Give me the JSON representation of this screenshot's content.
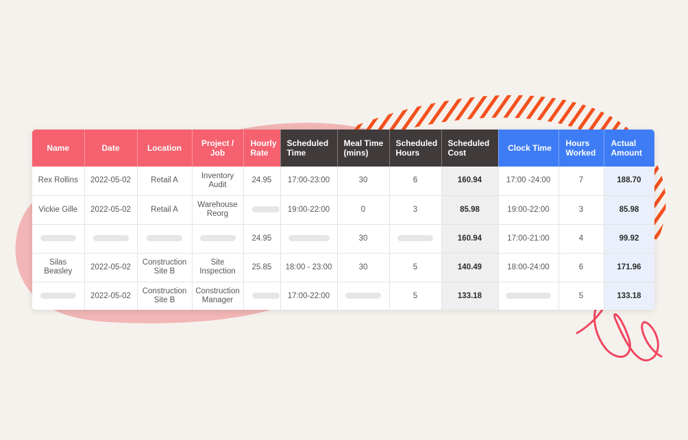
{
  "headers": {
    "name": "Name",
    "date": "Date",
    "location": "Location",
    "project": "Project / Job",
    "hourly": "Hourly Rate",
    "sched_time": "Scheduled Time",
    "meal": "Meal Time (mins)",
    "sched_hours": "Scheduled Hours",
    "sched_cost": "Scheduled Cost",
    "clock": "Clock Time",
    "worked": "Hours Worked",
    "actual": "Actual Amount"
  },
  "rows": [
    {
      "name": "Rex Rollins",
      "date": "2022-05-02",
      "location": "Retail A",
      "project": "Inventory Audit",
      "hourly": "24.95",
      "sched_time": "17:00-23:00",
      "meal": "30",
      "sched_hours": "6",
      "sched_cost": "160.94",
      "clock": "17:00 -24:00",
      "worked": "7",
      "actual": "188.70"
    },
    {
      "name": "Vickie Gille",
      "date": "2022-05-02",
      "location": "Retail A",
      "project": "Warehouse Reorg",
      "hourly": "",
      "sched_time": "19:00-22:00",
      "meal": "0",
      "sched_hours": "3",
      "sched_cost": "85.98",
      "clock": "19:00-22:00",
      "worked": "3",
      "actual": "85.98"
    },
    {
      "name": "",
      "date": "",
      "location": "",
      "project": "",
      "hourly": "24.95",
      "sched_time": "",
      "meal": "30",
      "sched_hours": "",
      "sched_cost": "160.94",
      "clock": "17:00-21:00",
      "worked": "4",
      "actual": "99.92"
    },
    {
      "name": "Silas Beasley",
      "date": "2022-05-02",
      "location": "Construction Site B",
      "project": "Site Inspection",
      "hourly": "25.85",
      "sched_time": "18:00 - 23:00",
      "meal": "30",
      "sched_hours": "5",
      "sched_cost": "140.49",
      "clock": "18:00-24:00",
      "worked": "6",
      "actual": "171.96"
    },
    {
      "name": "",
      "date": "2022-05-02",
      "location": "Construction Site B",
      "project": "Construction Manager",
      "hourly": "",
      "sched_time": "17:00-22:00",
      "meal": "",
      "sched_hours": "5",
      "sched_cost": "133.18",
      "clock": "",
      "worked": "5",
      "actual": "133.18"
    }
  ],
  "colors": {
    "pink_header": "#f5616f",
    "dark_header": "#403a3a",
    "blue_header": "#3d7cf4",
    "blob": "#f2b6b6",
    "stripes": "#f4511e",
    "scribble": "#f0455e"
  }
}
